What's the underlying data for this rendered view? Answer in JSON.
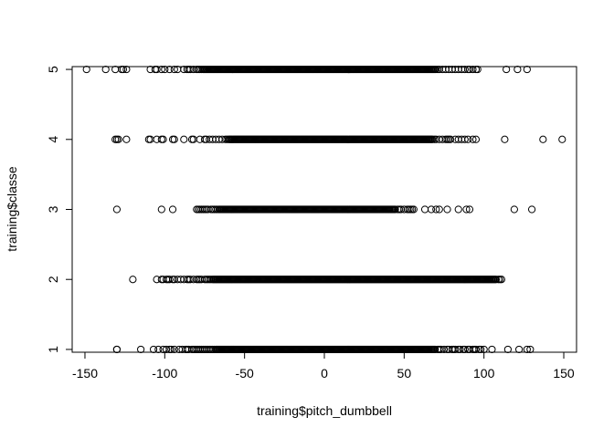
{
  "chart_data": {
    "type": "scatter",
    "title": "",
    "xlabel": "training$pitch_dumbbell",
    "ylabel": "training$classe",
    "xlim": [
      -158,
      158
    ],
    "ylim": [
      0.96,
      5.04
    ],
    "x_ticks": [
      -150,
      -100,
      -50,
      0,
      50,
      100,
      150
    ],
    "y_ticks": [
      1,
      2,
      3,
      4,
      5
    ],
    "x_tick_labels": [
      "-150",
      "-100",
      "-50",
      "0",
      "50",
      "100",
      "150"
    ],
    "y_tick_labels": [
      "1",
      "2",
      "3",
      "4",
      "5"
    ],
    "grid": false,
    "legend": "none",
    "series": [
      {
        "y": 1,
        "dense_range": [
          -68,
          70
        ],
        "sparse_x": [
          -130,
          -130,
          -115,
          -107,
          -104,
          -101,
          -99,
          -97,
          -96,
          -94,
          -91,
          -89,
          -87,
          -86,
          -85,
          -83,
          -82,
          -81,
          -80,
          -79,
          -78,
          -77,
          -76,
          -75,
          -74,
          -73,
          -72,
          -71,
          -70,
          -69,
          71,
          72,
          73,
          75,
          77,
          78,
          80,
          81,
          82,
          84,
          85,
          87,
          88,
          90,
          91,
          93,
          94,
          95,
          97,
          98,
          100,
          105,
          115,
          122,
          127,
          129
        ]
      },
      {
        "y": 2,
        "dense_range": [
          -70,
          108
        ],
        "sparse_x": [
          -120,
          -105,
          -102,
          -101,
          -99,
          -98,
          -97,
          -95,
          -94,
          -92,
          -90,
          -88,
          -86,
          -85,
          -84,
          -82,
          -80,
          -79,
          -78,
          -77,
          -75,
          -74,
          -73,
          -72,
          -71,
          109,
          110,
          111
        ]
      },
      {
        "y": 3,
        "dense_range": [
          -66,
          45
        ],
        "sparse_x": [
          -130,
          -102,
          -95,
          -80,
          -79,
          -78,
          -77,
          -76,
          -75,
          -74,
          -73,
          -71,
          -70,
          -69,
          -68,
          -67,
          46,
          47,
          48,
          50,
          52,
          53,
          54,
          55,
          56,
          63,
          67,
          70,
          72,
          77,
          84,
          89,
          91,
          119,
          130
        ]
      },
      {
        "y": 4,
        "dense_range": [
          -60,
          68
        ],
        "sparse_x": [
          -131,
          -130,
          -129,
          -124,
          -110,
          -109,
          -105,
          -102,
          -101,
          -95,
          -94,
          -88,
          -83,
          -82,
          -78,
          -75,
          -74,
          -72,
          -70,
          -68,
          -66,
          -64,
          -62,
          -61,
          69,
          70,
          72,
          74,
          76,
          77,
          78,
          79,
          82,
          84,
          86,
          88,
          90,
          93,
          95,
          113,
          137,
          149
        ]
      },
      {
        "y": 5,
        "dense_range": [
          -76,
          70
        ],
        "sparse_x": [
          -149,
          -137,
          -131,
          -127,
          -126,
          -124,
          -109,
          -106,
          -105,
          -102,
          -100,
          -97,
          -94,
          -92,
          -88,
          -86,
          -85,
          -84,
          -82,
          -80,
          -79,
          -78,
          -77,
          71,
          72,
          74,
          76,
          78,
          80,
          82,
          84,
          86,
          88,
          90,
          91,
          93,
          95,
          96,
          114,
          121,
          127
        ]
      }
    ]
  }
}
